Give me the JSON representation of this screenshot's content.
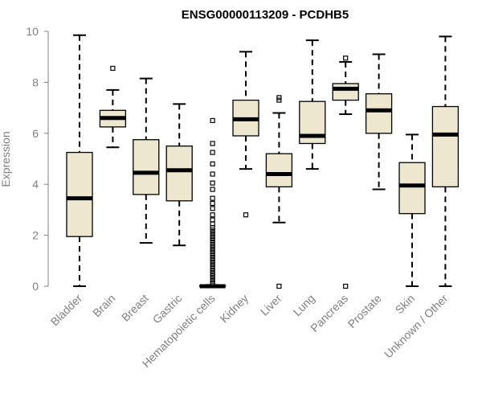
{
  "chart_data": {
    "type": "boxplot",
    "title": "ENSG00000113209 - PCDHB5",
    "xlabel": "",
    "ylabel": "Expression",
    "ylim": [
      0,
      10
    ],
    "yticks": [
      0,
      2,
      4,
      6,
      8,
      10
    ],
    "box_fill": "#EDE7D0",
    "categories": [
      "Bladder",
      "Brain",
      "Breast",
      "Gastric",
      "Hematopoietic cells",
      "Kidney",
      "Liver",
      "Lung",
      "Pancreas",
      "Prostate",
      "Skin",
      "Unknown / Other"
    ],
    "boxes": [
      {
        "name": "Bladder",
        "min": 0.0,
        "q1": 1.95,
        "median": 3.45,
        "q3": 5.25,
        "max": 9.85,
        "outliers": []
      },
      {
        "name": "Brain",
        "min": 5.45,
        "q1": 6.25,
        "median": 6.6,
        "q3": 6.9,
        "max": 7.7,
        "outliers": [
          8.55
        ]
      },
      {
        "name": "Breast",
        "min": 1.7,
        "q1": 3.6,
        "median": 4.45,
        "q3": 5.75,
        "max": 8.15,
        "outliers": []
      },
      {
        "name": "Gastric",
        "min": 1.6,
        "q1": 3.35,
        "median": 4.55,
        "q3": 5.5,
        "max": 7.15,
        "outliers": []
      },
      {
        "name": "Hematopoietic cells",
        "min": 0.0,
        "q1": 0.0,
        "median": 0.0,
        "q3": 0.02,
        "max": 0.05,
        "outliers": [
          0.1,
          0.2,
          0.3,
          0.4,
          0.5,
          0.6,
          0.7,
          0.8,
          0.9,
          1.0,
          1.1,
          1.2,
          1.3,
          1.4,
          1.5,
          1.6,
          1.7,
          1.8,
          1.9,
          2.0,
          2.1,
          2.2,
          2.3,
          2.45,
          2.6,
          2.8,
          3.05,
          3.25,
          3.45,
          3.8,
          4.05,
          4.4,
          4.8,
          5.25,
          5.6,
          6.5
        ]
      },
      {
        "name": "Kidney",
        "min": 4.6,
        "q1": 5.9,
        "median": 6.55,
        "q3": 7.3,
        "max": 9.2,
        "outliers": [
          2.8
        ]
      },
      {
        "name": "Liver",
        "min": 2.5,
        "q1": 3.9,
        "median": 4.4,
        "q3": 5.2,
        "max": 6.8,
        "outliers": [
          0.0,
          7.3,
          7.4
        ]
      },
      {
        "name": "Lung",
        "min": 4.6,
        "q1": 5.6,
        "median": 5.9,
        "q3": 7.25,
        "max": 9.65,
        "outliers": []
      },
      {
        "name": "Pancreas",
        "min": 6.75,
        "q1": 7.3,
        "median": 7.75,
        "q3": 7.95,
        "max": 8.8,
        "outliers": [
          0.0,
          8.95
        ]
      },
      {
        "name": "Prostate",
        "min": 3.8,
        "q1": 6.0,
        "median": 6.9,
        "q3": 7.55,
        "max": 9.1,
        "outliers": []
      },
      {
        "name": "Skin",
        "min": 0.0,
        "q1": 2.85,
        "median": 3.95,
        "q3": 4.85,
        "max": 5.95,
        "outliers": []
      },
      {
        "name": "Unknown / Other",
        "min": 0.0,
        "q1": 3.9,
        "median": 5.95,
        "q3": 7.05,
        "max": 9.8,
        "outliers": []
      }
    ]
  }
}
